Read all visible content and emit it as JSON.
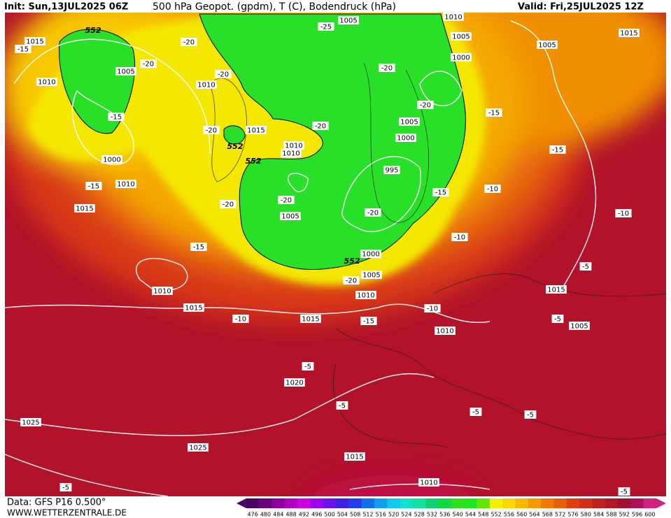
{
  "header": {
    "init": "Init: Sun,13JUL2025 06Z",
    "title": "500 hPa Geopot. (gpdm), T (C), Bodendruck (hPa)",
    "valid": "Valid: Fri,25JUL2025 12Z"
  },
  "footer": {
    "data_source": "Data: GFS P16 0.500°",
    "website": "WWW.WETTERZENTRALE.DE"
  },
  "geopotential_labels": [
    "552",
    "552",
    "552",
    "552"
  ],
  "isobar_labels": [
    "1015",
    "1010",
    "1005",
    "1000",
    "1010",
    "1015",
    "1010",
    "1015",
    "1010",
    "1010",
    "1005",
    "1005",
    "1010",
    "1005",
    "1000",
    "1005",
    "1000",
    "995",
    "1000",
    "1005",
    "1010",
    "1010",
    "1015",
    "1015",
    "1010",
    "1015",
    "1005",
    "1005",
    "1015",
    "1020",
    "1025",
    "1025",
    "1015",
    "1010"
  ],
  "temperature_labels": [
    "-15",
    "-20",
    "-20",
    "-20",
    "-25",
    "-20",
    "-20",
    "-15",
    "-15",
    "-20",
    "-20",
    "-15",
    "-20",
    "-20",
    "-20",
    "-15",
    "-10",
    "-15",
    "-10",
    "-15",
    "-10",
    "-5",
    "-20",
    "-10",
    "-10",
    "-15",
    "-5",
    "-5",
    "-5",
    "-5",
    "-5",
    "-5",
    "-5"
  ],
  "colorbar": {
    "levels": [
      476,
      480,
      484,
      488,
      492,
      496,
      500,
      504,
      508,
      512,
      516,
      520,
      524,
      528,
      532,
      536,
      540,
      544,
      548,
      552,
      556,
      560,
      564,
      568,
      572,
      576,
      580,
      584,
      588,
      592,
      596,
      600
    ],
    "colors": [
      "#4a0062",
      "#6a0080",
      "#8c009e",
      "#b000c0",
      "#d000e0",
      "#a000f0",
      "#7010f0",
      "#4020e8",
      "#2040f0",
      "#1070f0",
      "#10a0f0",
      "#10c8f0",
      "#10e0d0",
      "#10e0a0",
      "#10d070",
      "#10d840",
      "#30e020",
      "#20e820",
      "#60e800",
      "#f0f000",
      "#f8d800",
      "#f8b800",
      "#f89800",
      "#f07800",
      "#e86000",
      "#e04010",
      "#d03018",
      "#c02020",
      "#b01828",
      "#a01030",
      "#b01058",
      "#d02080"
    ]
  }
}
